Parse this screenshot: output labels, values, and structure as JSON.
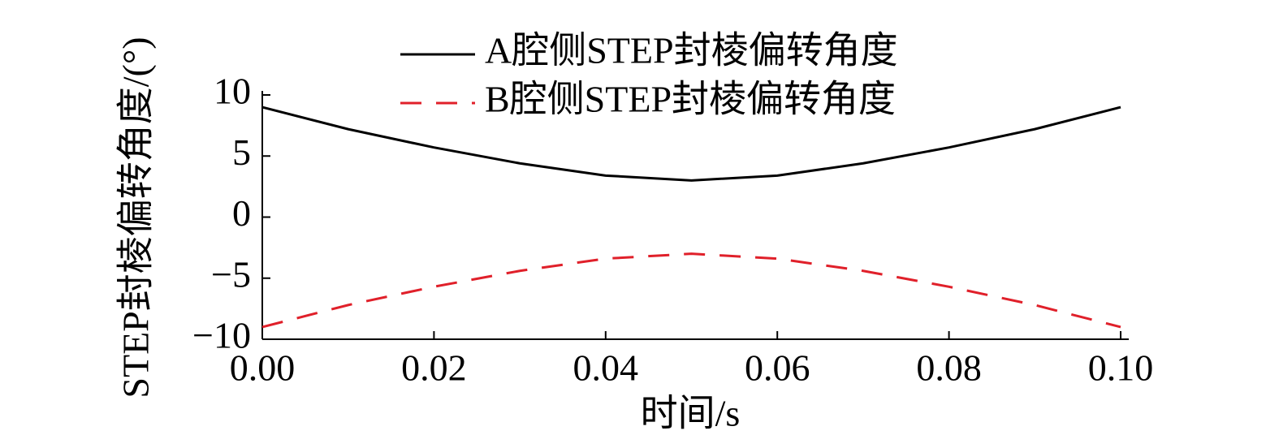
{
  "chart_data": {
    "type": "line",
    "x_label": "时间/s",
    "y_label": "STEP封棱偏转角度/(°)",
    "x": [
      0,
      0.01,
      0.02,
      0.03,
      0.04,
      0.05,
      0.06,
      0.07,
      0.08,
      0.09,
      0.1
    ],
    "series": [
      {
        "name": "A腔侧STEP封棱偏转角度",
        "color": "#000000",
        "linestyle": "solid",
        "values": [
          9,
          7.2,
          5.7,
          4.4,
          3.4,
          3.0,
          3.4,
          4.4,
          5.7,
          7.2,
          9
        ]
      },
      {
        "name": "B腔侧STEP封棱偏转角度",
        "color": "#e0202a",
        "linestyle": "dashed",
        "values": [
          -9,
          -7.2,
          -5.7,
          -4.4,
          -3.4,
          -3.0,
          -3.4,
          -4.4,
          -5.7,
          -7.2,
          -9
        ]
      }
    ],
    "xlim": [
      0,
      0.1
    ],
    "xticks": [
      {
        "value": 0,
        "label": "0.00"
      },
      {
        "value": 0.02,
        "label": "0.02"
      },
      {
        "value": 0.04,
        "label": "0.04"
      },
      {
        "value": 0.06,
        "label": "0.06"
      },
      {
        "value": 0.08,
        "label": "0.08"
      },
      {
        "value": 0.1,
        "label": "0.10"
      }
    ],
    "ylim": [
      -10,
      10
    ],
    "yticks": [
      {
        "value": -10,
        "label": "−10"
      },
      {
        "value": -5,
        "label": "−5"
      },
      0,
      5,
      10
    ],
    "grid": false,
    "legend": "top"
  }
}
